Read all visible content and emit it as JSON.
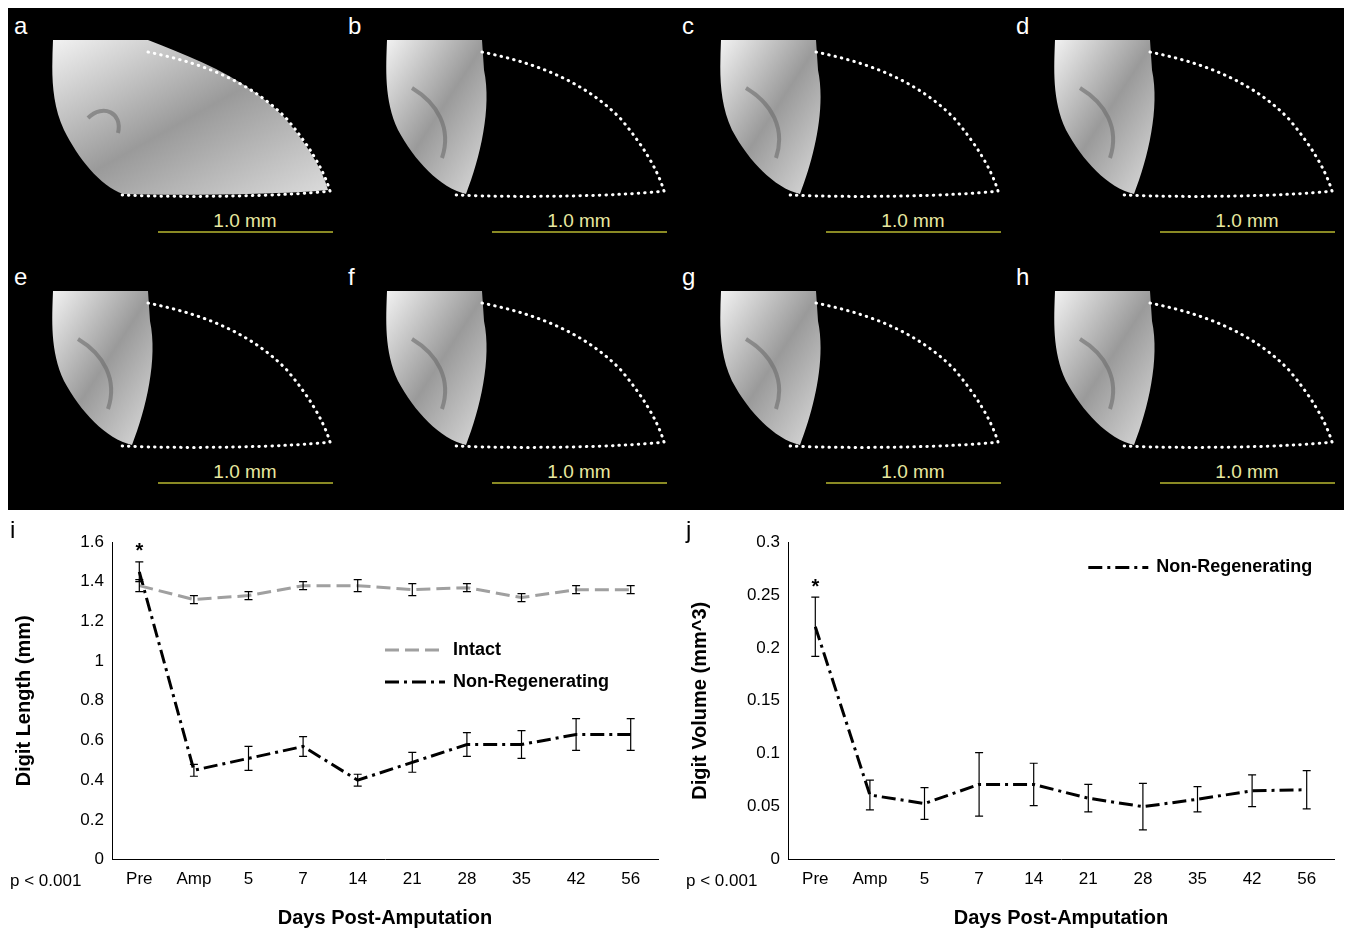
{
  "panels": [
    {
      "label": "a",
      "scale_bar": "1.0 mm"
    },
    {
      "label": "b",
      "scale_bar": "1.0 mm"
    },
    {
      "label": "c",
      "scale_bar": "1.0 mm"
    },
    {
      "label": "d",
      "scale_bar": "1.0 mm"
    },
    {
      "label": "e",
      "scale_bar": "1.0 mm"
    },
    {
      "label": "f",
      "scale_bar": "1.0 mm"
    },
    {
      "label": "g",
      "scale_bar": "1.0 mm"
    },
    {
      "label": "h",
      "scale_bar": "1.0 mm"
    }
  ],
  "chart_data": [
    {
      "panel": "i",
      "type": "line",
      "x_label": "Days Post-Amputation",
      "y_label": "Digit Length (mm)",
      "categories": [
        "Pre",
        "Amp",
        "5",
        "7",
        "14",
        "21",
        "28",
        "35",
        "42",
        "56"
      ],
      "series": [
        {
          "name": "Intact",
          "color": "#a0a0a0",
          "line_style": "dashed",
          "marker": "none",
          "values": [
            1.38,
            1.31,
            1.33,
            1.38,
            1.38,
            1.36,
            1.37,
            1.32,
            1.36,
            1.36
          ],
          "errors": [
            0.03,
            0.02,
            0.02,
            0.02,
            0.03,
            0.03,
            0.02,
            0.02,
            0.02,
            0.02
          ]
        },
        {
          "name": "Non-Regenerating",
          "color": "#000000",
          "line_style": "dashdot",
          "marker": "none",
          "values": [
            1.45,
            0.45,
            0.51,
            0.57,
            0.4,
            0.49,
            0.58,
            0.58,
            0.63,
            0.63
          ],
          "errors": [
            0.05,
            0.03,
            0.06,
            0.05,
            0.03,
            0.05,
            0.06,
            0.07,
            0.08,
            0.08
          ]
        }
      ],
      "ylim": [
        0,
        1.6
      ],
      "yticks": [
        0,
        0.2,
        0.4,
        0.6,
        0.8,
        1,
        1.2,
        1.4,
        1.6
      ],
      "grid": false,
      "legend": "right",
      "annotations": [
        {
          "text": "*",
          "category": "Pre"
        },
        {
          "text": "p < 0.001"
        }
      ]
    },
    {
      "panel": "j",
      "type": "line",
      "x_label": "Days Post-Amputation",
      "y_label": "Digit Volume (mm^3)",
      "categories": [
        "Pre",
        "Amp",
        "5",
        "7",
        "14",
        "21",
        "28",
        "35",
        "42",
        "56"
      ],
      "series": [
        {
          "name": "Non-Regenerating",
          "color": "#000000",
          "line_style": "dashdot",
          "marker": "none",
          "values": [
            0.22,
            0.061,
            0.053,
            0.071,
            0.071,
            0.058,
            0.05,
            0.057,
            0.065,
            0.066
          ],
          "errors": [
            0.028,
            0.014,
            0.015,
            0.03,
            0.02,
            0.013,
            0.022,
            0.012,
            0.015,
            0.018
          ]
        }
      ],
      "ylim": [
        0,
        0.3
      ],
      "yticks": [
        0,
        0.05,
        0.1,
        0.15,
        0.2,
        0.25,
        0.3
      ],
      "grid": false,
      "legend": "upper right",
      "annotations": [
        {
          "text": "*",
          "category": "Pre"
        },
        {
          "text": "p < 0.001"
        }
      ]
    }
  ]
}
